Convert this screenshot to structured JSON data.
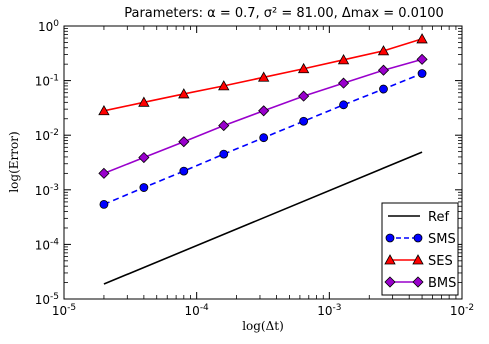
{
  "chart_data": {
    "type": "line",
    "title": "Parameters: α = 0.7, σ² = 81.00, Δmax = 0.0100",
    "xlabel": "log(Δt)",
    "ylabel": "log(Error)",
    "xscale": "log",
    "yscale": "log",
    "xlim": [
      1e-05,
      0.01
    ],
    "ylim": [
      1e-05,
      1
    ],
    "x_ticks": [
      {
        "value": 1e-05,
        "base": "10",
        "exp": "-5"
      },
      {
        "value": 0.0001,
        "base": "10",
        "exp": "-4"
      },
      {
        "value": 0.001,
        "base": "10",
        "exp": "-3"
      },
      {
        "value": 0.01,
        "base": "10",
        "exp": "-2"
      }
    ],
    "y_ticks": [
      {
        "value": 1e-05,
        "base": "10",
        "exp": "-5"
      },
      {
        "value": 0.0001,
        "base": "10",
        "exp": "-4"
      },
      {
        "value": 0.001,
        "base": "10",
        "exp": "-3"
      },
      {
        "value": 0.01,
        "base": "10",
        "exp": "-2"
      },
      {
        "value": 0.1,
        "base": "10",
        "exp": "-1"
      },
      {
        "value": 1,
        "base": "10",
        "exp": "0"
      }
    ],
    "legend_position": "lower-right",
    "grid": false,
    "series": [
      {
        "name": "Ref",
        "color": "#000000",
        "dash": "solid",
        "marker": "none",
        "x": [
          2e-05,
          0.005
        ],
        "y": [
          1.88e-05,
          0.0049
        ]
      },
      {
        "name": "SMS",
        "color": "#0000ff",
        "dash": "dashed",
        "marker": "circle",
        "x": [
          2e-05,
          4e-05,
          8e-05,
          0.00016,
          0.00032,
          0.00064,
          0.00128,
          0.00256,
          0.005
        ],
        "y": [
          0.00054,
          0.0011,
          0.0022,
          0.0045,
          0.009,
          0.018,
          0.036,
          0.07,
          0.135
        ]
      },
      {
        "name": "SES",
        "color": "#ff0000",
        "dash": "solid",
        "marker": "triangle",
        "x": [
          2e-05,
          4e-05,
          8e-05,
          0.00016,
          0.00032,
          0.00064,
          0.00128,
          0.00256,
          0.005
        ],
        "y": [
          0.028,
          0.04,
          0.057,
          0.08,
          0.115,
          0.165,
          0.24,
          0.35,
          0.58
        ]
      },
      {
        "name": "BMS",
        "color": "#9900cc",
        "dash": "solid",
        "marker": "diamond",
        "x": [
          2e-05,
          4e-05,
          8e-05,
          0.00016,
          0.00032,
          0.00064,
          0.00128,
          0.00256,
          0.005
        ],
        "y": [
          0.002,
          0.0039,
          0.0076,
          0.015,
          0.028,
          0.052,
          0.09,
          0.155,
          0.245
        ]
      }
    ]
  }
}
